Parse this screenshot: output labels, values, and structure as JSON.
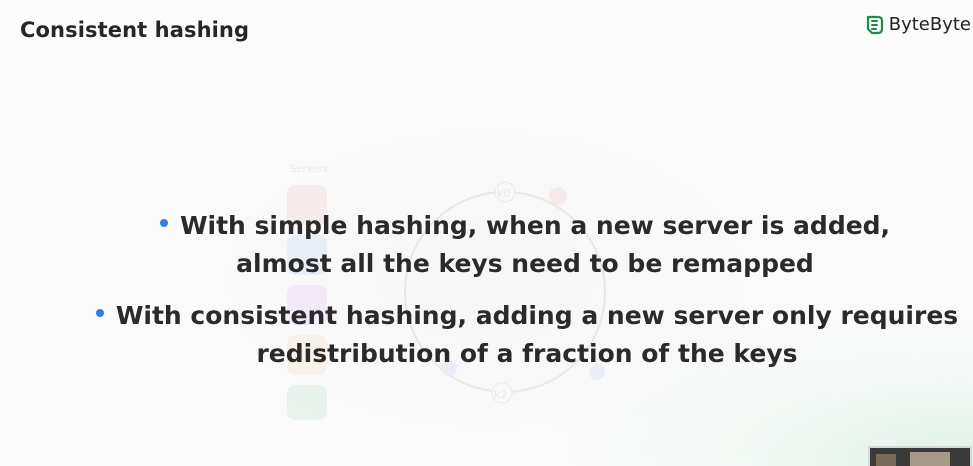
{
  "slide": {
    "title": "Consistent hashing",
    "brand": {
      "name": "ByteByte",
      "logo_icon": "bytebyte-logo-icon",
      "logo_color": "#1f8a4c"
    },
    "bullets": [
      {
        "lines": [
          "With simple hashing, when a new server is added,",
          "almost all the keys need to be remapped"
        ]
      },
      {
        "lines": [
          "With consistent hashing, adding a new server only requires",
          "redistribution of a fraction of the keys"
        ]
      }
    ],
    "bullet_color": "#2f7de1"
  },
  "background_diagram": {
    "heading": "Servers",
    "ring_keys": [
      "k0",
      "k2"
    ]
  },
  "webcam": {
    "icon": "presenter-video-thumbnail"
  }
}
